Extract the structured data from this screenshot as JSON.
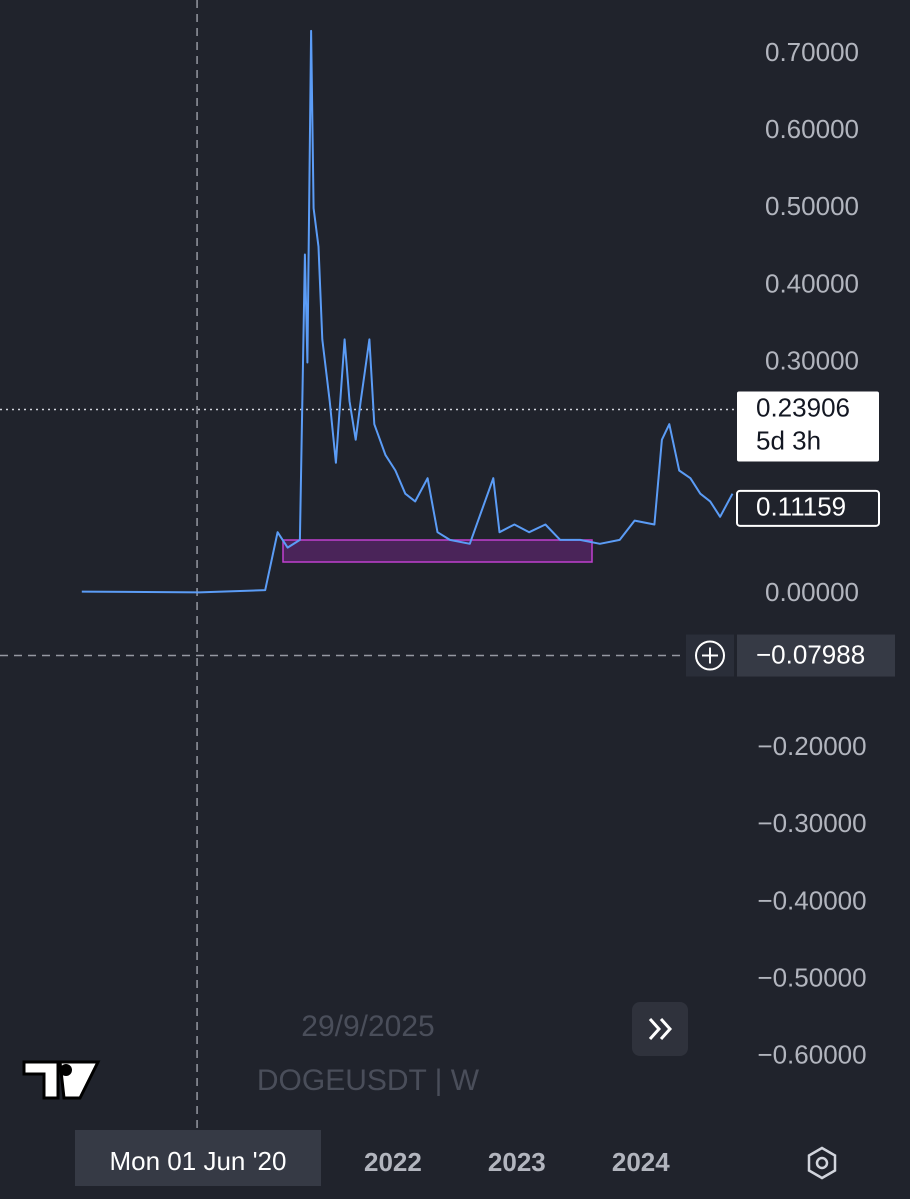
{
  "chart_data": {
    "type": "line",
    "color": "#5b9cf6",
    "x": [
      2019.49,
      2020.44,
      2020.97,
      2021.07,
      2021.15,
      2021.25,
      2021.29,
      2021.31,
      2021.34,
      2021.36,
      2021.4,
      2021.43,
      2021.49,
      2021.54,
      2021.61,
      2021.65,
      2021.7,
      2021.74,
      2021.81,
      2021.85,
      2021.94,
      2022.02,
      2022.1,
      2022.18,
      2022.28,
      2022.36,
      2022.46,
      2022.62,
      2022.81,
      2022.86,
      2022.98,
      2023.1,
      2023.23,
      2023.35,
      2023.51,
      2023.67,
      2023.83,
      2023.95,
      2024.11,
      2024.17,
      2024.23,
      2024.31,
      2024.4,
      2024.48,
      2024.56,
      2024.64,
      2024.74
    ],
    "values": [
      0.003,
      0.002,
      0.005,
      0.08,
      0.06,
      0.07,
      0.44,
      0.3,
      0.73,
      0.5,
      0.45,
      0.33,
      0.25,
      0.17,
      0.33,
      0.25,
      0.2,
      0.25,
      0.33,
      0.22,
      0.18,
      0.16,
      0.13,
      0.12,
      0.15,
      0.08,
      0.07,
      0.065,
      0.15,
      0.08,
      0.09,
      0.08,
      0.09,
      0.07,
      0.07,
      0.065,
      0.07,
      0.095,
      0.09,
      0.2,
      0.22,
      0.16,
      0.15,
      0.13,
      0.12,
      0.1,
      0.13
    ],
    "xlim": [
      2018.83,
      2024.76
    ],
    "ylim": [
      -0.695,
      0.77
    ],
    "xticks": [
      2022,
      2023,
      2024
    ],
    "yticks": [
      {
        "value": 0.7,
        "label": "0.70000"
      },
      {
        "value": 0.6,
        "label": "0.60000"
      },
      {
        "value": 0.5,
        "label": "0.50000"
      },
      {
        "value": 0.4,
        "label": "0.40000"
      },
      {
        "value": 0.3,
        "label": "0.30000"
      },
      {
        "value": 0.0,
        "label": "0.00000"
      },
      {
        "value": -0.2,
        "label": "−0.20000"
      },
      {
        "value": -0.3,
        "label": "−0.30000"
      },
      {
        "value": -0.4,
        "label": "−0.40000"
      },
      {
        "value": -0.5,
        "label": "−0.50000"
      },
      {
        "value": -0.6,
        "label": "−0.60000"
      }
    ],
    "price_line": {
      "value": 0.23906,
      "countdown": "5d 3h"
    },
    "last_price": 0.11159,
    "crosshair": {
      "x": 2020.42,
      "x_label": "Mon 01 Jun '20",
      "price": {
        "value": -0.07988,
        "label": "−0.07988"
      }
    },
    "watermark": {
      "date": "29/9/2025",
      "symbol": "DOGEUSDT | W"
    }
  }
}
